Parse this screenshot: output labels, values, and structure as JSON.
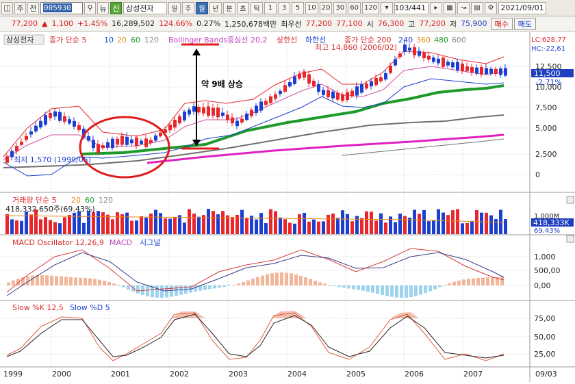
{
  "toolbar": {
    "type_label": "주",
    "type2_label": "전",
    "code": "005930",
    "news_label": "뉴",
    "sin_label": "신",
    "stock_name": "삼성전자",
    "periods": [
      "일",
      "주",
      "월",
      "년",
      "분",
      "초",
      "틱"
    ],
    "active_period": "월",
    "intervals": [
      "1",
      "3",
      "5",
      "10",
      "20",
      "30",
      "60",
      "120"
    ],
    "count": "103/441",
    "date": "2021/09/01"
  },
  "quote": {
    "price": "77,200",
    "change": "1,100",
    "change_pct": "+1.45%",
    "volume": "16,289,502",
    "volume_ratio": "124.66%",
    "turnover_pct": "0.27%",
    "amount": "1,250,678백만",
    "best_label": "최우선",
    "best_price": "77,200",
    "best_price2": "77,100",
    "open_label": "시",
    "open": "76,300",
    "high_label": "고",
    "high": "77,200",
    "low_label": "저",
    "low": "75,900",
    "buy_label": "매수",
    "sell_label": "매도"
  },
  "colors": {
    "up": "#e8262b",
    "down": "#1b3fd1",
    "ma20": "#e0e0e0",
    "green": "#1e9a2b",
    "gray": "#6f6f6f",
    "magenta": "#e020c0",
    "bollinger": "#e8262b",
    "annot": "#e01b1b"
  },
  "price_panel": {
    "legend_stock": "삼성전자",
    "legend_ma": "종가 단순 5",
    "legend_ma_periods": [
      "10",
      "20",
      "60",
      "120"
    ],
    "legend_bb": "Bollinger Bands중심선 20,2",
    "legend_bb_upper": "상한선",
    "legend_bb_lower": "하한선",
    "legend_ma2": "종가 단순 200",
    "legend_ma2_periods": [
      "240",
      "360",
      "480",
      "600"
    ],
    "lc": "LC:628,77",
    "hc": "HC:-22,61",
    "high_note": "최고 14,860 (2006/02)",
    "low_note": "최저 1,570 (1999/05)",
    "y_ticks": [
      "12,500",
      "10,000",
      "7,500",
      "5,000",
      "2,500",
      "0"
    ],
    "current_price": "11,500",
    "current_pct": "-2.71%",
    "annotation": "약 9배 상승"
  },
  "volume_panel": {
    "legend": "거래량 단순 5",
    "legend_periods": [
      "20",
      "60",
      "120"
    ],
    "value": "418,332,650주(69.43%)",
    "y_tick": "1,000M",
    "current": "418,333K",
    "current_pct": "69.43%"
  },
  "macd_panel": {
    "legend": "MACD Oscillator 12,26,9",
    "legend2": "MACD",
    "legend3": "시그널",
    "y_ticks": [
      "1,000",
      "500,00",
      "0,00"
    ]
  },
  "slow_panel": {
    "legend": "Slow %K 12,5",
    "legend2": "Slow %D 5",
    "y_ticks": [
      "75,00",
      "50,00",
      "25,00"
    ]
  },
  "x_axis": [
    "1999",
    "2000",
    "2001",
    "2002",
    "2003",
    "2004",
    "2005",
    "2006",
    "2007",
    "09/03"
  ]
}
